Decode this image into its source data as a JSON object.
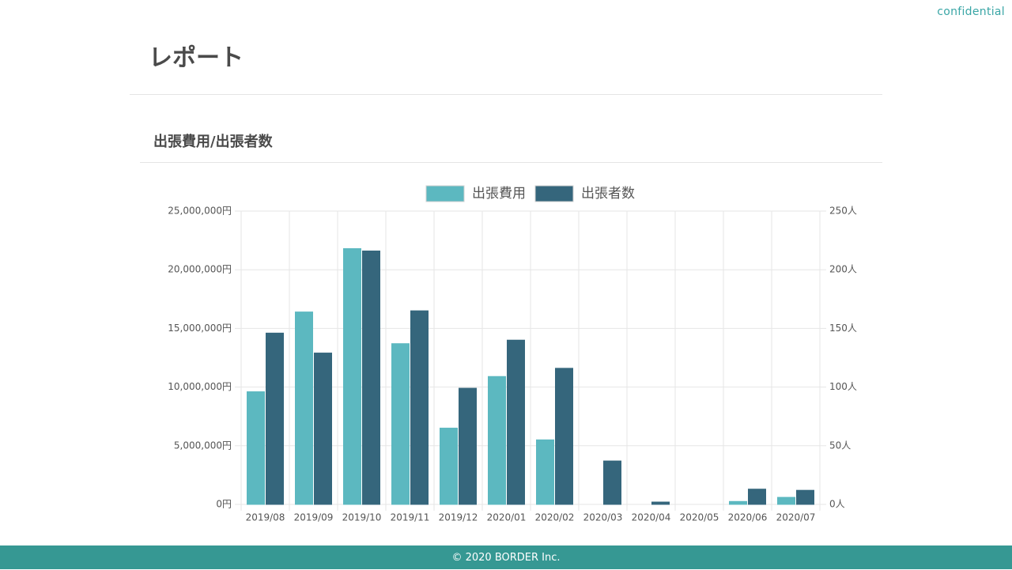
{
  "header": {
    "confidential": "confidential",
    "title": "レポート"
  },
  "section": {
    "title": "出張費用/出張者数"
  },
  "footer": {
    "copyright": "© 2020 BORDER Inc."
  },
  "chart_data": {
    "type": "bar",
    "title": "",
    "categories": [
      "2019/08",
      "2019/09",
      "2019/10",
      "2019/11",
      "2019/12",
      "2020/01",
      "2020/02",
      "2020/03",
      "2020/04",
      "2020/05",
      "2020/06",
      "2020/07"
    ],
    "series": [
      {
        "name": "出張費用",
        "axis": "left",
        "color": "#5cb8c0",
        "values": [
          9600000,
          16400000,
          21800000,
          13700000,
          6500000,
          10900000,
          5500000,
          0,
          0,
          0,
          250000,
          600000
        ]
      },
      {
        "name": "出張者数",
        "axis": "right",
        "color": "#35667c",
        "values": [
          146,
          129,
          216,
          165,
          99,
          140,
          116,
          37,
          2,
          0,
          13,
          12
        ]
      }
    ],
    "y_left": {
      "min": 0,
      "max": 25000000,
      "ticks": [
        "0円",
        "5,000,000円",
        "10,000,000円",
        "15,000,000円",
        "20,000,000円",
        "25,000,000円"
      ]
    },
    "y_right": {
      "min": 0,
      "max": 250,
      "ticks": [
        "0人",
        "50人",
        "100人",
        "150人",
        "200人",
        "250人"
      ]
    },
    "grid": true,
    "legend": "top-center"
  }
}
